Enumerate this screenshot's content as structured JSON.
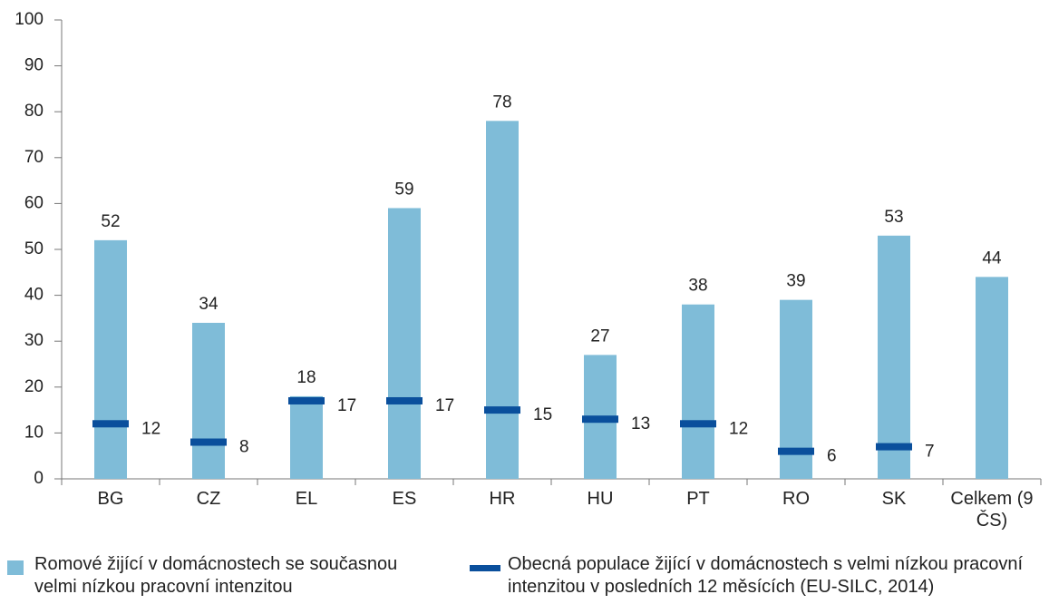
{
  "chart_data": {
    "type": "bar",
    "categories": [
      "BG",
      "CZ",
      "EL",
      "ES",
      "HR",
      "HU",
      "PT",
      "RO",
      "SK",
      "Celkem (9 ČS)"
    ],
    "series": [
      {
        "name": "Romové žijící v domácnostech se současnou velmi nízkou pracovní intenzitou",
        "color": "#7fbcd8",
        "values": [
          52,
          34,
          18,
          59,
          78,
          27,
          38,
          39,
          53,
          44
        ]
      },
      {
        "name": "Obecná populace žijící v domácnostech s velmi nízkou pracovní intenzitou v posledních 12 měsících (EU-SILC, 2014)",
        "color": "#0a4f9c",
        "values": [
          12,
          8,
          17,
          17,
          15,
          13,
          12,
          6,
          7,
          null
        ]
      }
    ],
    "ylim": [
      0,
      100
    ],
    "yticks": [
      0,
      10,
      20,
      30,
      40,
      50,
      60,
      70,
      80,
      90,
      100
    ],
    "grid": false
  }
}
